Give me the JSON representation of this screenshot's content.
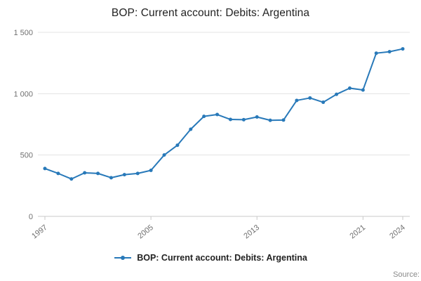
{
  "header": {
    "title": "BOP: Current account: Debits: Argentina"
  },
  "chart_data": {
    "type": "line",
    "title": "BOP: Current account: Debits: Argentina",
    "x": [
      1997,
      1998,
      1999,
      2000,
      2001,
      2002,
      2003,
      2004,
      2005,
      2006,
      2007,
      2008,
      2009,
      2010,
      2011,
      2012,
      2013,
      2014,
      2015,
      2016,
      2017,
      2018,
      2019,
      2020,
      2021,
      2022,
      2023,
      2024
    ],
    "series": [
      {
        "name": "BOP: Current account: Debits: Argentina",
        "values": [
          390,
          350,
          305,
          355,
          350,
          315,
          340,
          350,
          375,
          500,
          580,
          710,
          815,
          830,
          790,
          788,
          810,
          783,
          785,
          945,
          965,
          930,
          995,
          1045,
          1030,
          1330,
          1342,
          1365
        ]
      }
    ],
    "ylim": [
      0,
      1500
    ],
    "yticks": [
      0,
      500,
      1000,
      1500
    ],
    "ytick_labels": [
      "0",
      "500",
      "1 000",
      "1 500"
    ],
    "xticks": [
      1997,
      2005,
      2013,
      2021,
      2024
    ],
    "grid": true,
    "legend_position": "bottom",
    "line_color": "#2879b9",
    "grid_color": "#e3e3e3",
    "axis_color": "#c9c9c9",
    "tick_label_color": "#707070"
  },
  "legend": {
    "label": "BOP: Current account: Debits: Argentina"
  },
  "footer": {
    "source": "Source:"
  }
}
